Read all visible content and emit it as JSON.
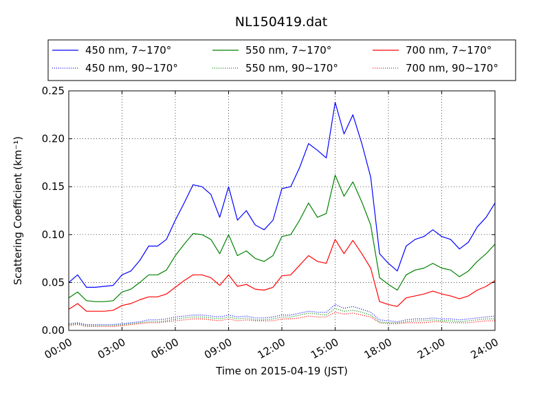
{
  "chart_data": {
    "type": "line",
    "title": "NL150419.dat",
    "xlabel": "Time on 2015-04-19 (JST)",
    "ylabel": "Scattering Coefficient (km⁻¹)",
    "xlim": [
      "00:00",
      "24:00"
    ],
    "ylim": [
      0,
      0.25
    ],
    "x_ticks": [
      "00:00",
      "03:00",
      "06:00",
      "09:00",
      "12:00",
      "15:00",
      "18:00",
      "21:00",
      "24:00"
    ],
    "y_ticks": [
      "0.00",
      "0.05",
      "0.10",
      "0.15",
      "0.20",
      "0.25"
    ],
    "grid": true,
    "legend_position": "top",
    "x": [
      "00:00",
      "00:30",
      "01:00",
      "01:30",
      "02:00",
      "02:30",
      "03:00",
      "03:30",
      "04:00",
      "04:30",
      "05:00",
      "05:30",
      "06:00",
      "06:30",
      "07:00",
      "07:30",
      "08:00",
      "08:30",
      "09:00",
      "09:30",
      "10:00",
      "10:30",
      "11:00",
      "11:30",
      "12:00",
      "12:30",
      "13:00",
      "13:30",
      "14:00",
      "14:30",
      "15:00",
      "15:30",
      "16:00",
      "16:30",
      "17:00",
      "17:30",
      "18:00",
      "18:30",
      "19:00",
      "19:30",
      "20:00",
      "20:30",
      "21:00",
      "21:30",
      "22:00",
      "22:30",
      "23:00",
      "23:30",
      "24:00"
    ],
    "series": [
      {
        "name": "450 nm, 7∼170°",
        "color": "#0000ff",
        "style": "solid",
        "values": [
          0.05,
          0.058,
          0.045,
          0.045,
          0.046,
          0.047,
          0.058,
          0.062,
          0.073,
          0.088,
          0.088,
          0.095,
          0.115,
          0.133,
          0.152,
          0.15,
          0.142,
          0.118,
          0.15,
          0.115,
          0.125,
          0.11,
          0.105,
          0.115,
          0.148,
          0.15,
          0.17,
          0.195,
          0.188,
          0.18,
          0.238,
          0.205,
          0.225,
          0.195,
          0.16,
          0.08,
          0.07,
          0.062,
          0.088,
          0.095,
          0.098,
          0.105,
          0.098,
          0.095,
          0.085,
          0.092,
          0.108,
          0.118,
          0.133
        ]
      },
      {
        "name": "550 nm, 7∼170°",
        "color": "#008000",
        "style": "solid",
        "values": [
          0.034,
          0.04,
          0.031,
          0.03,
          0.03,
          0.031,
          0.04,
          0.043,
          0.05,
          0.058,
          0.058,
          0.063,
          0.078,
          0.09,
          0.101,
          0.1,
          0.095,
          0.08,
          0.1,
          0.078,
          0.083,
          0.075,
          0.072,
          0.078,
          0.098,
          0.1,
          0.115,
          0.133,
          0.118,
          0.122,
          0.162,
          0.14,
          0.155,
          0.134,
          0.11,
          0.055,
          0.048,
          0.042,
          0.058,
          0.063,
          0.065,
          0.07,
          0.065,
          0.063,
          0.056,
          0.062,
          0.072,
          0.08,
          0.09
        ]
      },
      {
        "name": "700 nm, 7∼170°",
        "color": "#ff0000",
        "style": "solid",
        "values": [
          0.022,
          0.028,
          0.02,
          0.02,
          0.02,
          0.021,
          0.026,
          0.028,
          0.032,
          0.035,
          0.035,
          0.038,
          0.045,
          0.052,
          0.058,
          0.058,
          0.055,
          0.047,
          0.058,
          0.046,
          0.048,
          0.043,
          0.042,
          0.045,
          0.057,
          0.058,
          0.068,
          0.078,
          0.072,
          0.07,
          0.095,
          0.08,
          0.094,
          0.08,
          0.065,
          0.03,
          0.027,
          0.025,
          0.034,
          0.036,
          0.038,
          0.041,
          0.038,
          0.036,
          0.033,
          0.036,
          0.042,
          0.046,
          0.052
        ]
      },
      {
        "name": "450 nm, 90∼170°",
        "color": "#0000ff",
        "style": "dotted",
        "values": [
          0.007,
          0.008,
          0.006,
          0.006,
          0.006,
          0.006,
          0.007,
          0.008,
          0.009,
          0.011,
          0.011,
          0.012,
          0.014,
          0.015,
          0.016,
          0.016,
          0.015,
          0.014,
          0.016,
          0.014,
          0.015,
          0.013,
          0.013,
          0.014,
          0.016,
          0.016,
          0.018,
          0.02,
          0.019,
          0.019,
          0.027,
          0.023,
          0.025,
          0.022,
          0.019,
          0.011,
          0.01,
          0.009,
          0.011,
          0.012,
          0.012,
          0.013,
          0.012,
          0.012,
          0.011,
          0.012,
          0.013,
          0.014,
          0.015
        ]
      },
      {
        "name": "550 nm, 90∼170°",
        "color": "#008000",
        "style": "dotted",
        "values": [
          0.006,
          0.007,
          0.005,
          0.005,
          0.005,
          0.005,
          0.006,
          0.007,
          0.008,
          0.009,
          0.009,
          0.01,
          0.012,
          0.013,
          0.014,
          0.014,
          0.013,
          0.012,
          0.014,
          0.012,
          0.013,
          0.011,
          0.011,
          0.012,
          0.014,
          0.014,
          0.016,
          0.018,
          0.017,
          0.016,
          0.023,
          0.02,
          0.021,
          0.019,
          0.016,
          0.009,
          0.008,
          0.008,
          0.009,
          0.01,
          0.01,
          0.011,
          0.01,
          0.01,
          0.009,
          0.01,
          0.011,
          0.012,
          0.012
        ]
      },
      {
        "name": "700 nm, 90∼170°",
        "color": "#ff0000",
        "style": "dotted",
        "values": [
          0.005,
          0.006,
          0.004,
          0.004,
          0.004,
          0.004,
          0.005,
          0.006,
          0.007,
          0.008,
          0.008,
          0.009,
          0.01,
          0.011,
          0.012,
          0.012,
          0.011,
          0.01,
          0.012,
          0.01,
          0.011,
          0.01,
          0.01,
          0.01,
          0.012,
          0.012,
          0.013,
          0.015,
          0.014,
          0.014,
          0.019,
          0.017,
          0.018,
          0.016,
          0.014,
          0.008,
          0.007,
          0.007,
          0.008,
          0.008,
          0.008,
          0.009,
          0.009,
          0.008,
          0.008,
          0.008,
          0.009,
          0.01,
          0.01
        ]
      }
    ]
  }
}
